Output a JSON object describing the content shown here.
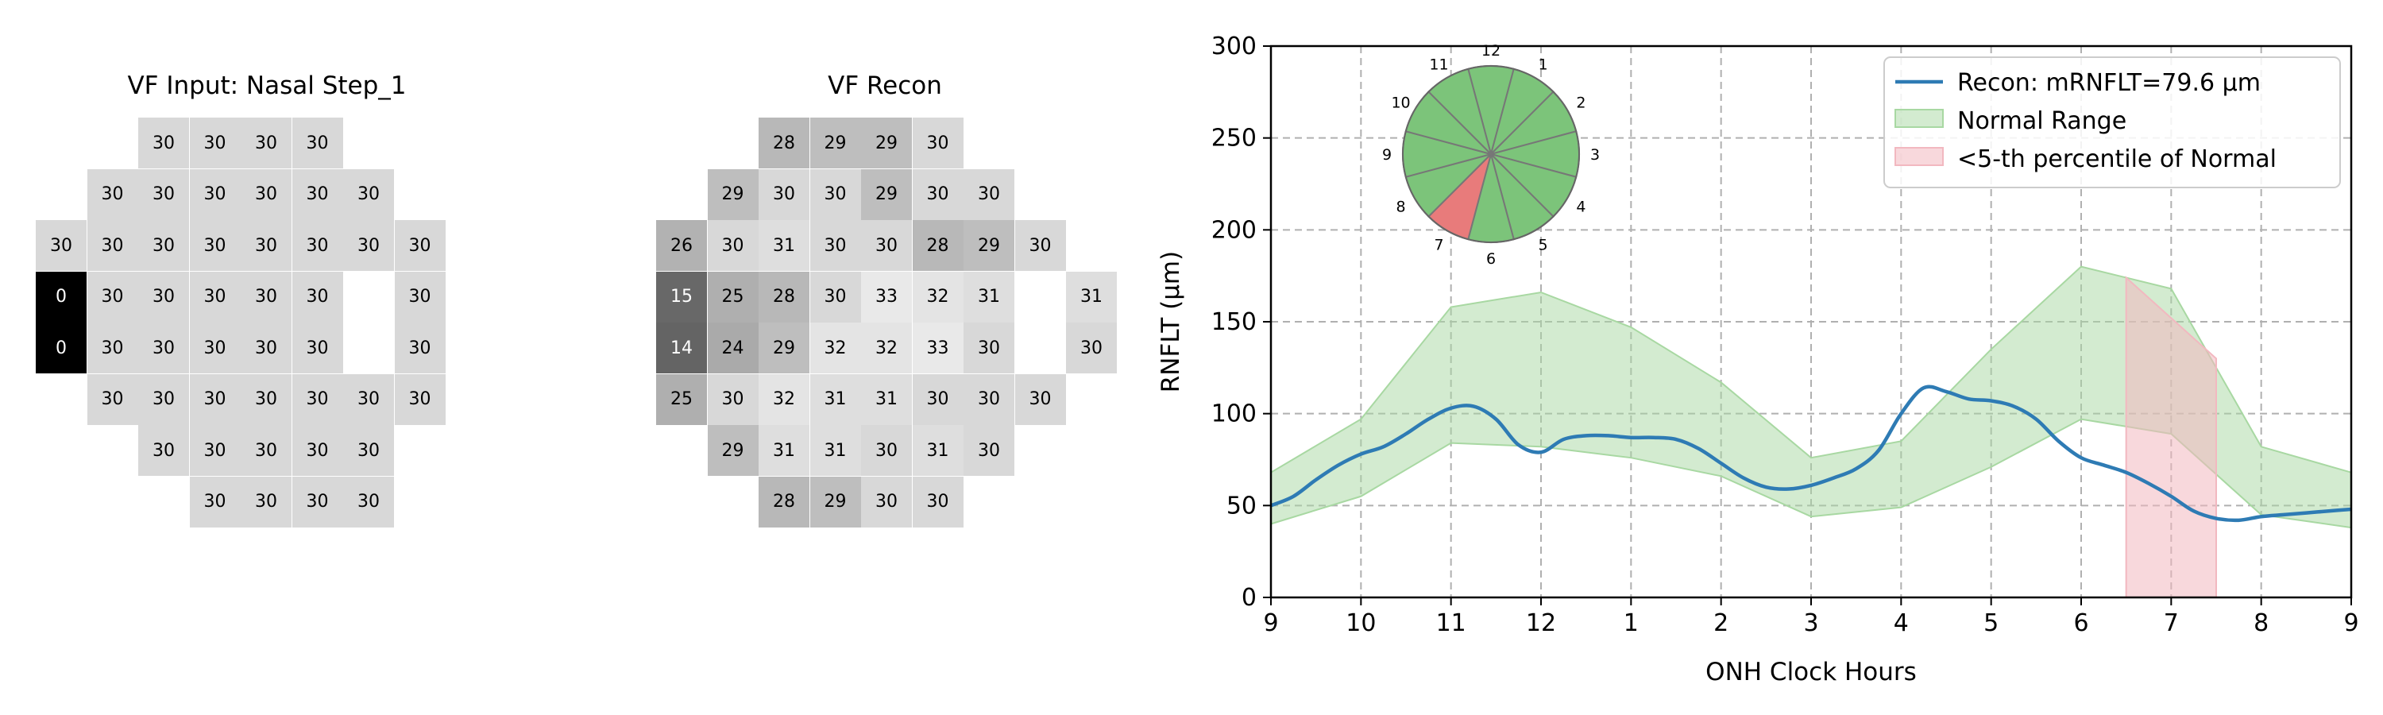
{
  "panels": {
    "input": {
      "title": "VF Input: Nasal Step_1",
      "rows": [
        [
          null,
          null,
          30,
          30,
          30,
          30,
          null,
          null,
          null
        ],
        [
          null,
          30,
          30,
          30,
          30,
          30,
          30,
          null,
          null
        ],
        [
          30,
          30,
          30,
          30,
          30,
          30,
          30,
          30,
          null
        ],
        [
          0,
          30,
          30,
          30,
          30,
          30,
          null,
          30,
          null
        ],
        [
          0,
          30,
          30,
          30,
          30,
          30,
          null,
          30,
          null
        ],
        [
          null,
          30,
          30,
          30,
          30,
          30,
          30,
          30,
          null
        ],
        [
          null,
          null,
          30,
          30,
          30,
          30,
          30,
          null,
          null
        ],
        [
          null,
          null,
          null,
          30,
          30,
          30,
          30,
          null,
          null
        ]
      ]
    },
    "recon": {
      "title": "VF Recon",
      "rows": [
        [
          null,
          null,
          28,
          29,
          29,
          30,
          null,
          null,
          null
        ],
        [
          null,
          29,
          30,
          30,
          29,
          30,
          30,
          null,
          null
        ],
        [
          26,
          30,
          31,
          30,
          30,
          28,
          29,
          30,
          null
        ],
        [
          15,
          25,
          28,
          30,
          33,
          32,
          31,
          null,
          31
        ],
        [
          14,
          24,
          29,
          32,
          32,
          33,
          30,
          null,
          30
        ],
        [
          25,
          30,
          32,
          31,
          31,
          30,
          30,
          30,
          null
        ],
        [
          null,
          29,
          31,
          31,
          30,
          31,
          30,
          null,
          null
        ],
        [
          null,
          null,
          28,
          29,
          30,
          30,
          null,
          null,
          null
        ]
      ]
    }
  },
  "chart_data": {
    "type": "line",
    "xlabel": "ONH Clock Hours",
    "ylabel": "RNFLT (μm)",
    "ylim": [
      0,
      300
    ],
    "yticks": [
      0,
      50,
      100,
      150,
      200,
      250,
      300
    ],
    "xtick_labels": [
      "9",
      "10",
      "11",
      "12",
      "1",
      "2",
      "3",
      "4",
      "5",
      "6",
      "7",
      "8",
      "9"
    ],
    "grid": true,
    "legend_position": "top-right",
    "series": [
      {
        "name": "Recon: mRNFLT=79.6 μm",
        "color": "#2e7bb4",
        "x": [
          0,
          0.25,
          0.5,
          0.75,
          1,
          1.25,
          1.5,
          1.75,
          2,
          2.25,
          2.5,
          2.75,
          3,
          3.25,
          3.5,
          3.75,
          4,
          4.25,
          4.5,
          4.75,
          5,
          5.25,
          5.5,
          5.75,
          6,
          6.25,
          6.5,
          6.75,
          7,
          7.25,
          7.5,
          7.75,
          8,
          8.25,
          8.5,
          8.75,
          9,
          9.25,
          9.5,
          9.75,
          10,
          10.25,
          10.5,
          10.75,
          11,
          11.25,
          11.5,
          11.75,
          12
        ],
        "y": [
          50,
          55,
          64,
          72,
          78,
          82,
          89,
          97,
          103,
          104,
          97,
          83,
          79,
          86,
          88,
          88,
          87,
          87,
          86,
          81,
          73,
          65,
          60,
          59,
          61,
          65,
          70,
          80,
          100,
          114,
          112,
          108,
          107,
          104,
          97,
          85,
          76,
          72,
          68,
          62,
          55,
          47,
          43,
          42,
          44,
          45,
          46,
          47,
          48
        ]
      }
    ],
    "normal_range": {
      "name": "Normal Range",
      "color": "#a8d8a2",
      "x": [
        0,
        1,
        2,
        3,
        4,
        5,
        6,
        7,
        8,
        9,
        10,
        11,
        12
      ],
      "upper": [
        68,
        97,
        158,
        166,
        147,
        117,
        76,
        85,
        135,
        180,
        168,
        82,
        68
      ],
      "lower": [
        40,
        55,
        84,
        82,
        76,
        66,
        44,
        49,
        71,
        97,
        89,
        45,
        38
      ]
    },
    "below_5th_percentile": {
      "name": "<5-th percentile of Normal",
      "color": "#f2b8c0",
      "x_range": [
        9.5,
        10.5
      ],
      "upper": [
        174,
        130
      ]
    },
    "inset_clock": {
      "labels": [
        "12",
        "1",
        "2",
        "3",
        "4",
        "5",
        "6",
        "7",
        "8",
        "9",
        "10",
        "11"
      ],
      "sector_colors": [
        "#7cc47a",
        "#7cc47a",
        "#7cc47a",
        "#7cc47a",
        "#7cc47a",
        "#7cc47a",
        "#7cc47a",
        "#e87b7b",
        "#7cc47a",
        "#7cc47a",
        "#7cc47a",
        "#7cc47a"
      ]
    }
  }
}
